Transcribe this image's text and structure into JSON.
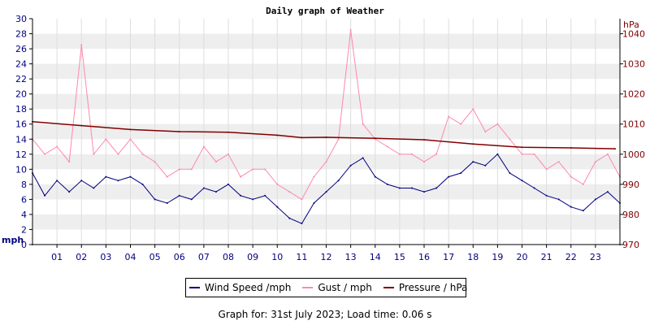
{
  "chart_data": {
    "type": "line",
    "title": "Daily graph of Weather",
    "left_axis": {
      "label": "mph",
      "range": [
        0,
        30
      ],
      "ticks": [
        0,
        2,
        4,
        6,
        8,
        10,
        12,
        14,
        16,
        18,
        20,
        22,
        24,
        26,
        28,
        30
      ]
    },
    "right_axis": {
      "label": "hPa",
      "range": [
        970,
        1045
      ],
      "ticks": [
        970,
        980,
        990,
        1000,
        1010,
        1020,
        1030,
        1040
      ]
    },
    "x_axis": {
      "label": "",
      "range": [
        0,
        24
      ],
      "unit": "hour",
      "ticks": [
        "01",
        "02",
        "03",
        "04",
        "05",
        "06",
        "07",
        "08",
        "09",
        "10",
        "11",
        "12",
        "13",
        "14",
        "15",
        "16",
        "17",
        "18",
        "19",
        "20",
        "21",
        "22",
        "23"
      ]
    },
    "grid": "horizontal alternating bands",
    "legend_position": "bottom",
    "series": [
      {
        "name": "Wind Speed /mph",
        "axis": "left",
        "color": "#000080",
        "x": [
          0,
          0.5,
          1,
          1.5,
          2,
          2.5,
          3,
          3.5,
          4,
          4.5,
          5,
          5.5,
          6,
          6.5,
          7,
          7.5,
          8,
          8.5,
          9,
          9.5,
          10,
          10.5,
          11,
          11.5,
          12,
          12.5,
          13,
          13.5,
          14,
          14.5,
          15,
          15.5,
          16,
          16.5,
          17,
          17.5,
          18,
          18.5,
          19,
          19.5,
          20,
          20.5,
          21,
          21.5,
          22,
          22.5,
          23,
          23.5,
          24
        ],
        "values": [
          9.5,
          6.5,
          8.5,
          7,
          8.5,
          7.5,
          9,
          8.5,
          9,
          8,
          6,
          5.5,
          6.5,
          6,
          7.5,
          7,
          8,
          6.5,
          6,
          6.5,
          5,
          3.5,
          2.8,
          5.5,
          7,
          8.5,
          10.5,
          11.5,
          9,
          8,
          7.5,
          7.5,
          7,
          7.5,
          9,
          9.5,
          11,
          10.5,
          12,
          9.5,
          8.5,
          7.5,
          6.5,
          6,
          5,
          4.5,
          6,
          7,
          5.5
        ]
      },
      {
        "name": "Gust / mph",
        "axis": "left",
        "color": "#ff88aa",
        "x": [
          0,
          0.5,
          1,
          1.5,
          2,
          2.5,
          3,
          3.5,
          4,
          4.5,
          5,
          5.5,
          6,
          6.5,
          7,
          7.5,
          8,
          8.5,
          9,
          9.5,
          10,
          10.5,
          11,
          11.5,
          12,
          12.5,
          13,
          13.5,
          14,
          14.5,
          15,
          15.5,
          16,
          16.5,
          17,
          17.5,
          18,
          18.5,
          19,
          19.5,
          20,
          20.5,
          21,
          21.5,
          22,
          22.5,
          23,
          23.5,
          24
        ],
        "values": [
          14,
          12,
          13,
          11,
          26.5,
          12,
          14,
          12,
          14,
          12,
          11,
          9,
          10,
          10,
          13,
          11,
          12,
          9,
          10,
          10,
          8,
          7,
          6,
          9,
          11,
          14,
          28.5,
          16,
          14,
          13,
          12,
          12,
          11,
          12,
          17,
          16,
          18,
          15,
          16,
          14,
          12,
          12,
          10,
          11,
          9,
          8,
          11,
          12,
          9
        ]
      },
      {
        "name": "Pressure / hPa",
        "axis": "right",
        "color": "#800000",
        "x": [
          0,
          2,
          4,
          6,
          8,
          10,
          11,
          12,
          14,
          16,
          18,
          20,
          22,
          23.8
        ],
        "values": [
          1010.8,
          1009.5,
          1008.2,
          1007.5,
          1007.3,
          1006.3,
          1005.5,
          1005.6,
          1005.3,
          1004.8,
          1003.4,
          1002.3,
          1002.1,
          1001.8
        ]
      }
    ]
  },
  "footer": "Graph for: 31st July 2023; Load time: 0.06 s"
}
